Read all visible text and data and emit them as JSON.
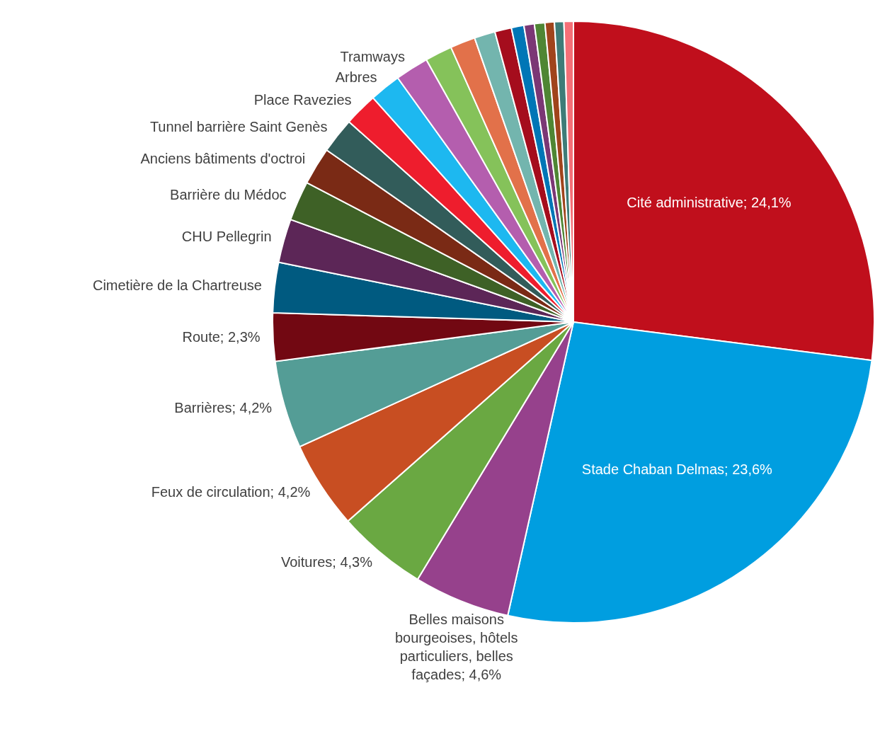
{
  "chart_data": {
    "type": "pie",
    "categories": [
      "Cité administrative",
      "Stade Chaban Delmas",
      "Belles maisons bourgeoises, hôtels particuliers, belles façades",
      "Voitures",
      "Feux de circulation",
      "Barrières",
      "Route",
      "Cimetière de la Chartreuse",
      "CHU Pellegrin",
      "Barrière du Médoc",
      "Anciens bâtiments d'octroi",
      "Tunnel barrière Saint Genès",
      "Place Ravezies",
      "Arbres",
      "Tramways",
      null,
      null,
      null,
      null,
      null,
      null,
      null,
      null,
      null,
      null
    ],
    "values": [
      24.1,
      23.6,
      4.6,
      4.3,
      4.2,
      4.2,
      2.3,
      2.4,
      2.1,
      1.9,
      1.8,
      1.7,
      1.6,
      1.5,
      1.6,
      1.3,
      1.2,
      1.0,
      0.8,
      0.6,
      0.5,
      0.5,
      0.45,
      0.45,
      0.45
    ],
    "value_labels": [
      "24,1%",
      "23,6%",
      "4,6%",
      "4,3%",
      "4,2%",
      "4,2%",
      "2,3%",
      null,
      null,
      null,
      null,
      null,
      null,
      null,
      null,
      null,
      null,
      null,
      null,
      null,
      null,
      null,
      null,
      null,
      null
    ],
    "colors": [
      "#c00f1c",
      "#009ee0",
      "#96418c",
      "#6aa842",
      "#c84e22",
      "#549d96",
      "#720812",
      "#005a80",
      "#5c2657",
      "#3e6126",
      "#7a2a15",
      "#325c5a",
      "#ee1d2d",
      "#1db8f0",
      "#b45eae",
      "#85c25a",
      "#e2714a",
      "#73b5ae",
      "#a50d1d",
      "#0076b6",
      "#7b3775",
      "#4f8634",
      "#a0441c",
      "#3e7c78",
      "#f56f77"
    ]
  }
}
